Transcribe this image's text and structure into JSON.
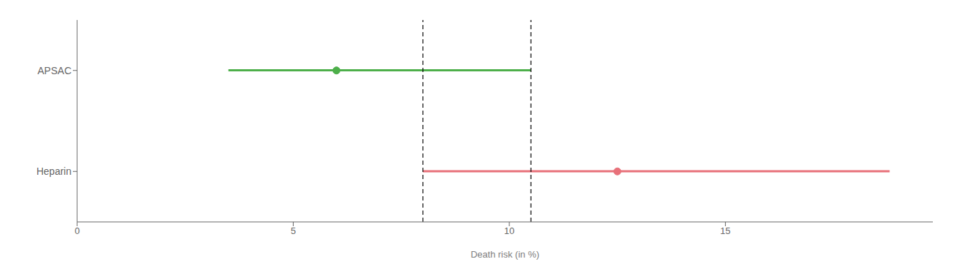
{
  "chart_data": {
    "type": "forest",
    "categories": [
      "APSAC",
      "Heparin"
    ],
    "values": [
      6.0,
      12.5
    ],
    "ci_low": [
      3.5,
      8.0
    ],
    "ci_high": [
      10.5,
      18.8
    ],
    "colors": [
      "#4daf4a",
      "#e8717a"
    ],
    "dashed_lines": [
      8.0,
      10.5
    ],
    "xlabel": "Death risk (in %)",
    "xlim": [
      0,
      19.8
    ],
    "xticks": [
      0,
      5,
      10,
      15
    ],
    "grid": false
  }
}
